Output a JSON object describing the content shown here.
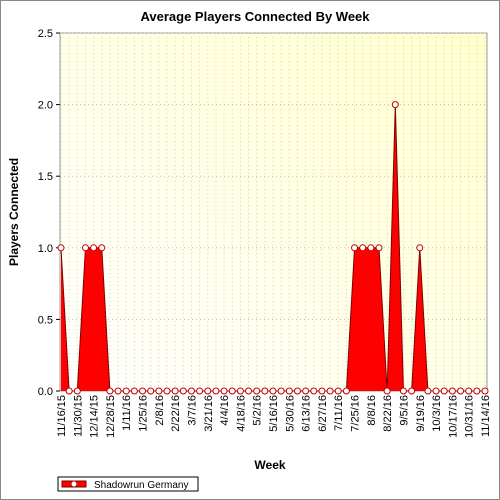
{
  "chart_data": {
    "type": "area",
    "title": "Average Players Connected By Week",
    "x_label": "Week",
    "y_label": "Players Connected",
    "categories": [
      "11/16/15",
      null,
      "11/30/15",
      null,
      "12/14/15",
      null,
      "12/28/15",
      null,
      "1/11/16",
      null,
      "1/25/16",
      null,
      "2/8/16",
      null,
      "2/22/16",
      null,
      "3/7/16",
      null,
      "3/21/16",
      null,
      "4/4/16",
      null,
      "4/18/16",
      null,
      "5/2/16",
      null,
      "5/16/16",
      null,
      "5/30/16",
      null,
      "6/13/16",
      null,
      "6/27/16",
      null,
      "7/11/16",
      null,
      "7/25/16",
      null,
      "8/8/16",
      null,
      "8/22/16",
      null,
      "9/5/16",
      null,
      "9/19/16",
      null,
      "10/3/16",
      null,
      "10/17/16",
      null,
      "10/31/16",
      null,
      "11/14/16"
    ],
    "series": [
      {
        "name": "Shadowrun Germany",
        "color": "#ff0000",
        "values": [
          1,
          0,
          0,
          1,
          1,
          1,
          0,
          0,
          0,
          0,
          0,
          0,
          0,
          0,
          0,
          0,
          0,
          0,
          0,
          0,
          0,
          0,
          0,
          0,
          0,
          0,
          0,
          0,
          0,
          0,
          0,
          0,
          0,
          0,
          0,
          0,
          1,
          1,
          1,
          1,
          0,
          2,
          0,
          0,
          1,
          0,
          0,
          0,
          0,
          0,
          0,
          0,
          0
        ]
      }
    ],
    "ylim": [
      0,
      2.5
    ],
    "yticks": [
      {
        "value": 0,
        "label": "0.0"
      },
      {
        "value": 0.5,
        "label": "0.5"
      },
      {
        "value": 1,
        "label": "1.0"
      },
      {
        "value": 1.5,
        "label": "1.5"
      },
      {
        "value": 2,
        "label": "2.0"
      },
      {
        "value": 2.5,
        "label": "2.5"
      }
    ],
    "grid": true
  }
}
